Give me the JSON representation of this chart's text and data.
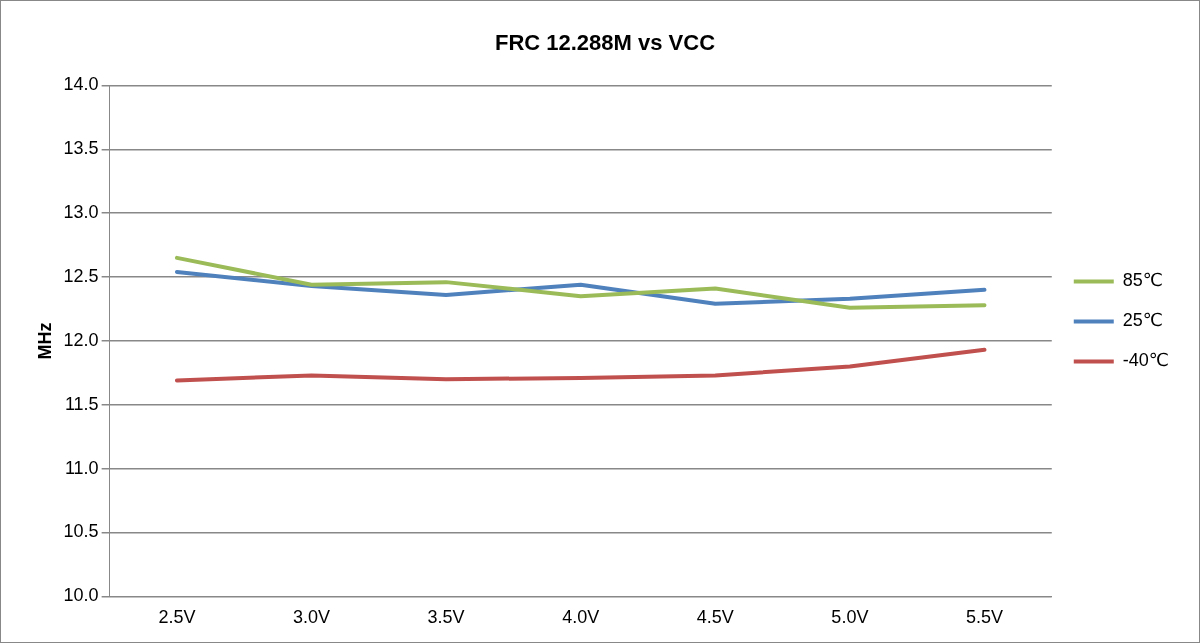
{
  "chart_data": {
    "type": "line",
    "title": "FRC 12.288M vs VCC",
    "ylabel": "MHz",
    "categories": [
      "2.5V",
      "3.0V",
      "3.5V",
      "4.0V",
      "4.5V",
      "5.0V",
      "5.5V"
    ],
    "series": [
      {
        "name": "85℃",
        "color": "#9bbb59",
        "values": [
          12.65,
          12.44,
          12.46,
          12.35,
          12.41,
          12.26,
          12.28
        ]
      },
      {
        "name": "25℃",
        "color": "#4f81bd",
        "values": [
          12.54,
          12.43,
          12.36,
          12.44,
          12.29,
          12.33,
          12.4
        ]
      },
      {
        "name": "-40℃",
        "color": "#c0504d",
        "values": [
          11.69,
          11.73,
          11.7,
          11.71,
          11.73,
          11.8,
          11.93
        ]
      }
    ],
    "ylim": [
      10,
      14
    ],
    "yticks": [
      {
        "value": 10,
        "label": "10.0"
      },
      10.5,
      {
        "value": 11,
        "label": "11.0"
      },
      11.5,
      {
        "value": 12,
        "label": "12.0"
      },
      12.5,
      {
        "value": 13,
        "label": "13.0"
      },
      13.5,
      {
        "value": 14,
        "label": "14.0"
      }
    ],
    "grid": "y",
    "legend": "right",
    "marker": "none"
  }
}
